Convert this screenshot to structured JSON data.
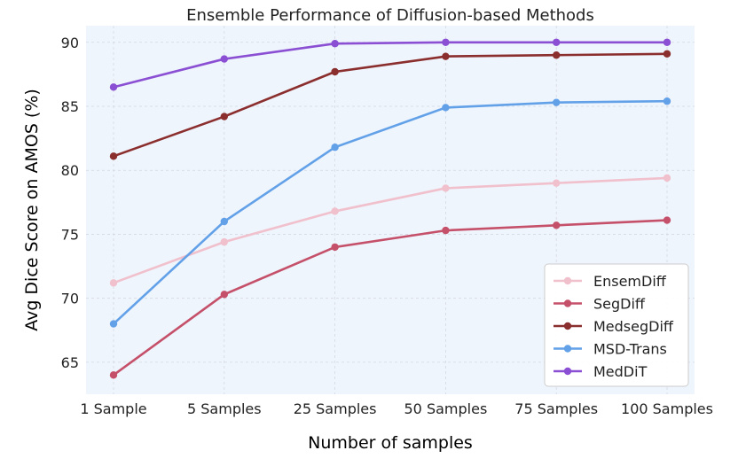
{
  "chart_data": {
    "type": "line",
    "title": "Ensemble Performance of Diffusion-based Methods",
    "xlabel": "Number of samples",
    "ylabel": "Avg Dice Score on AMOS (%)",
    "categories": [
      "1 Sample",
      "5 Samples",
      "25 Samples",
      "50 Samples",
      "75 Samples",
      "100 Samples"
    ],
    "ylim": [
      62.5,
      91.3
    ],
    "yticks": [
      65,
      70,
      75,
      80,
      85,
      90
    ],
    "grid": true,
    "legend_position": "lower-right",
    "series": [
      {
        "name": "EnsemDiff",
        "color": "#f0c0cc",
        "values": [
          71.2,
          74.4,
          76.8,
          78.6,
          79.0,
          79.4
        ]
      },
      {
        "name": "SegDiff",
        "color": "#c5506a",
        "values": [
          64.0,
          70.3,
          74.0,
          75.3,
          75.7,
          76.1
        ]
      },
      {
        "name": "MedsegDiff",
        "color": "#8b2e2e",
        "values": [
          81.1,
          84.2,
          87.7,
          88.9,
          89.0,
          89.1
        ]
      },
      {
        "name": "MSD-Trans",
        "color": "#62a1e8",
        "values": [
          68.0,
          76.0,
          81.8,
          84.9,
          85.3,
          85.4
        ]
      },
      {
        "name": "MedDiT",
        "color": "#8a4fd3",
        "values": [
          86.5,
          88.7,
          89.9,
          90.0,
          90.0,
          90.0
        ]
      }
    ]
  }
}
